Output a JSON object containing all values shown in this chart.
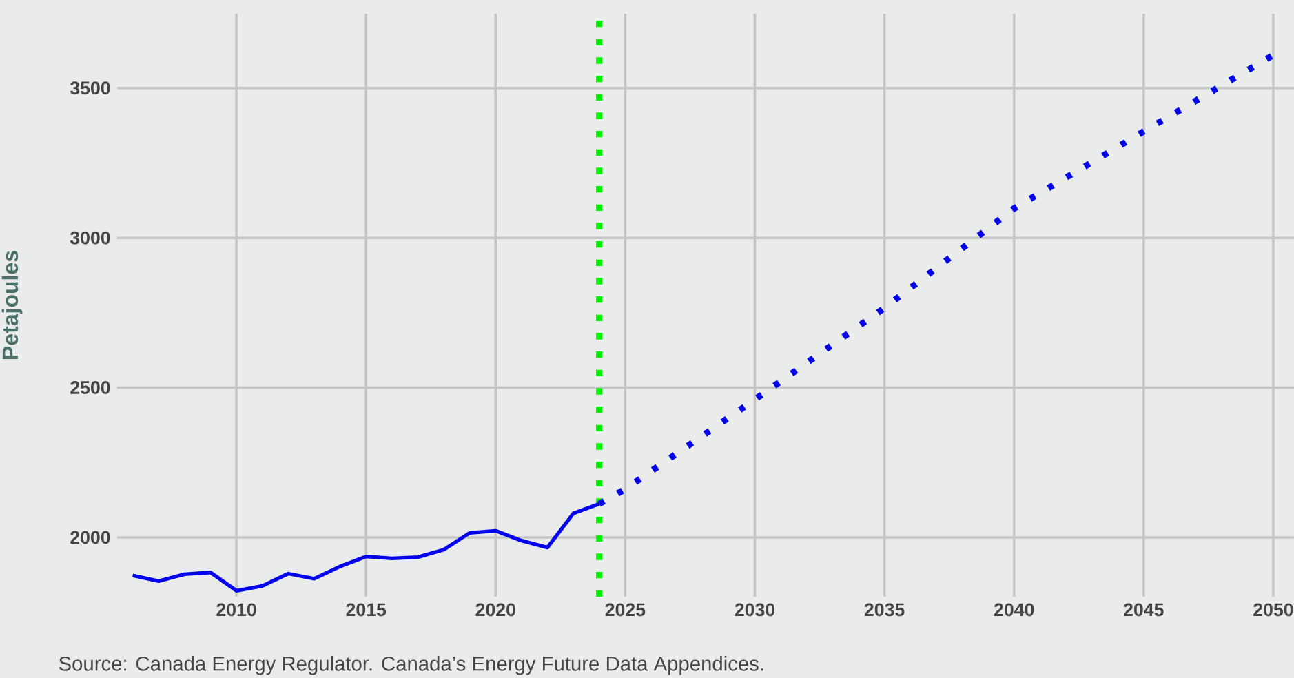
{
  "chart_data": {
    "type": "line",
    "ylabel": "Petajoules",
    "annotations": [
      "Source: Canada Energy Regulator. Canada’s Energy Future Data Appendices."
    ],
    "xlim": [
      2005.4,
      2050.8
    ],
    "ylim": [
      1802,
      3748
    ],
    "xticks": [
      2010,
      2015,
      2020,
      2025,
      2030,
      2035,
      2040,
      2045,
      2050
    ],
    "yticks": [
      2000,
      2500,
      3000,
      3500
    ],
    "grid": true,
    "series": [
      {
        "color": "#0000ee",
        "line_style": "solid",
        "x": [
          2006,
          2007,
          2008,
          2009,
          2010,
          2011,
          2012,
          2013,
          2014,
          2015,
          2016,
          2017,
          2018,
          2019,
          2020,
          2021,
          2022,
          2023,
          2024
        ],
        "values": [
          1873,
          1854,
          1877,
          1883,
          1822,
          1838,
          1879,
          1862,
          1903,
          1936,
          1930,
          1934,
          1959,
          2015,
          2022,
          1989,
          1966,
          2080,
          2112
        ]
      },
      {
        "color": "#0000ee",
        "line_style": "dotted",
        "x": [
          2024,
          2025,
          2030,
          2035,
          2040,
          2045,
          2050
        ],
        "values": [
          2112,
          2161,
          2460,
          2766,
          3098,
          3355,
          3610
        ]
      }
    ],
    "ref_lines": [
      {
        "axis": "x",
        "value": 2024,
        "color": "#00ee00",
        "line_style": "dotted"
      }
    ]
  }
}
